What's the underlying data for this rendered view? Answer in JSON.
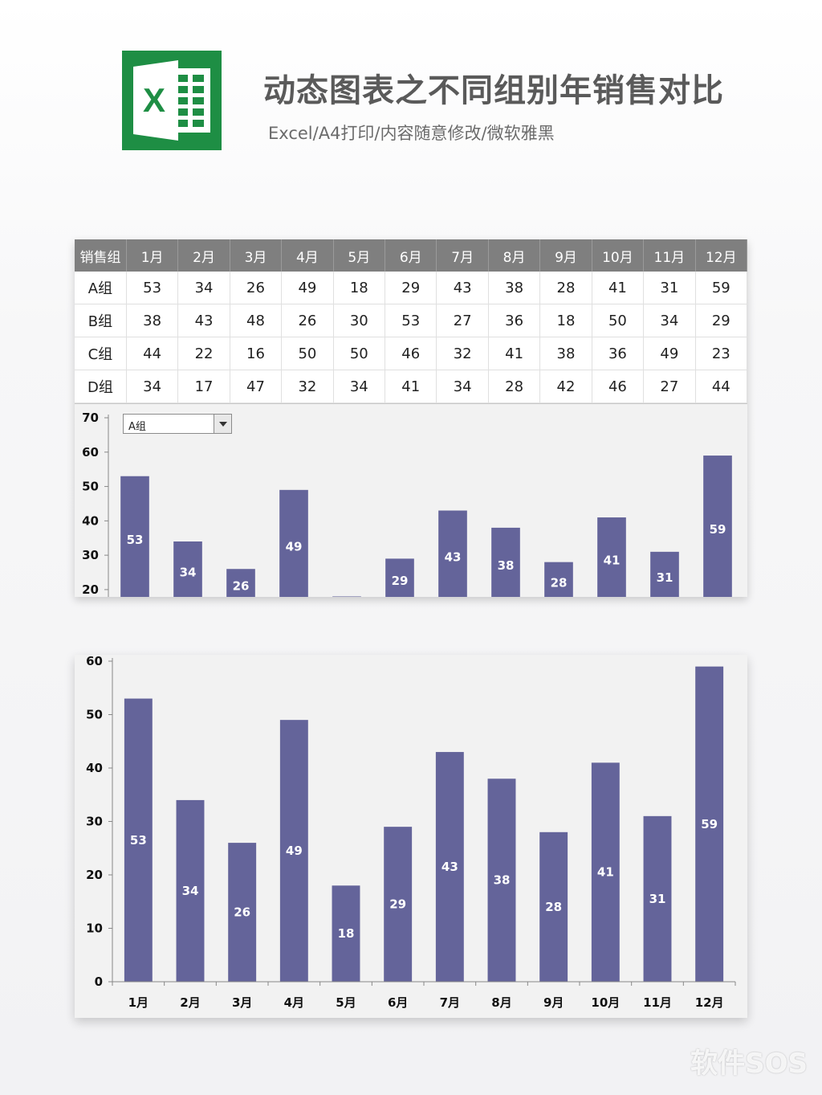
{
  "header": {
    "title": "动态图表之不同组别年销售对比",
    "subtitle": "Excel/A4打印/内容随意修改/微软雅黑",
    "logo_letter": "X"
  },
  "colors": {
    "bar": "#64649a",
    "header_bg": "#7f7f7f",
    "logo_green": "#1e8e44"
  },
  "table": {
    "corner": "销售组",
    "months": [
      "1月",
      "2月",
      "3月",
      "4月",
      "5月",
      "6月",
      "7月",
      "8月",
      "9月",
      "10月",
      "11月",
      "12月"
    ],
    "rows": [
      {
        "group": "A组",
        "values": [
          53,
          34,
          26,
          49,
          18,
          29,
          43,
          38,
          28,
          41,
          31,
          59
        ]
      },
      {
        "group": "B组",
        "values": [
          38,
          43,
          48,
          26,
          30,
          53,
          27,
          36,
          18,
          50,
          34,
          29
        ]
      },
      {
        "group": "C组",
        "values": [
          44,
          22,
          16,
          50,
          50,
          46,
          32,
          41,
          38,
          36,
          49,
          23
        ]
      },
      {
        "group": "D组",
        "values": [
          34,
          17,
          47,
          32,
          34,
          41,
          34,
          28,
          42,
          46,
          27,
          44
        ]
      }
    ]
  },
  "selector": {
    "selected": "A组"
  },
  "chart_data": [
    {
      "type": "bar",
      "categories": [
        "1月",
        "2月",
        "3月",
        "4月",
        "5月",
        "6月",
        "7月",
        "8月",
        "9月",
        "10月",
        "11月",
        "12月"
      ],
      "values": [
        53,
        34,
        26,
        49,
        18,
        29,
        43,
        38,
        28,
        41,
        31,
        59
      ],
      "yticks": [
        20,
        30,
        40,
        50,
        60,
        70
      ],
      "ylim": [
        16,
        70
      ],
      "grid": false,
      "data_labels": true
    },
    {
      "type": "bar",
      "categories": [
        "1月",
        "2月",
        "3月",
        "4月",
        "5月",
        "6月",
        "7月",
        "8月",
        "9月",
        "10月",
        "11月",
        "12月"
      ],
      "values": [
        53,
        34,
        26,
        49,
        18,
        29,
        43,
        38,
        28,
        41,
        31,
        59
      ],
      "yticks": [
        0,
        10,
        20,
        30,
        40,
        50,
        60
      ],
      "ylim": [
        0,
        60
      ],
      "grid": false,
      "data_labels": true
    }
  ],
  "watermark": "软件SOS"
}
